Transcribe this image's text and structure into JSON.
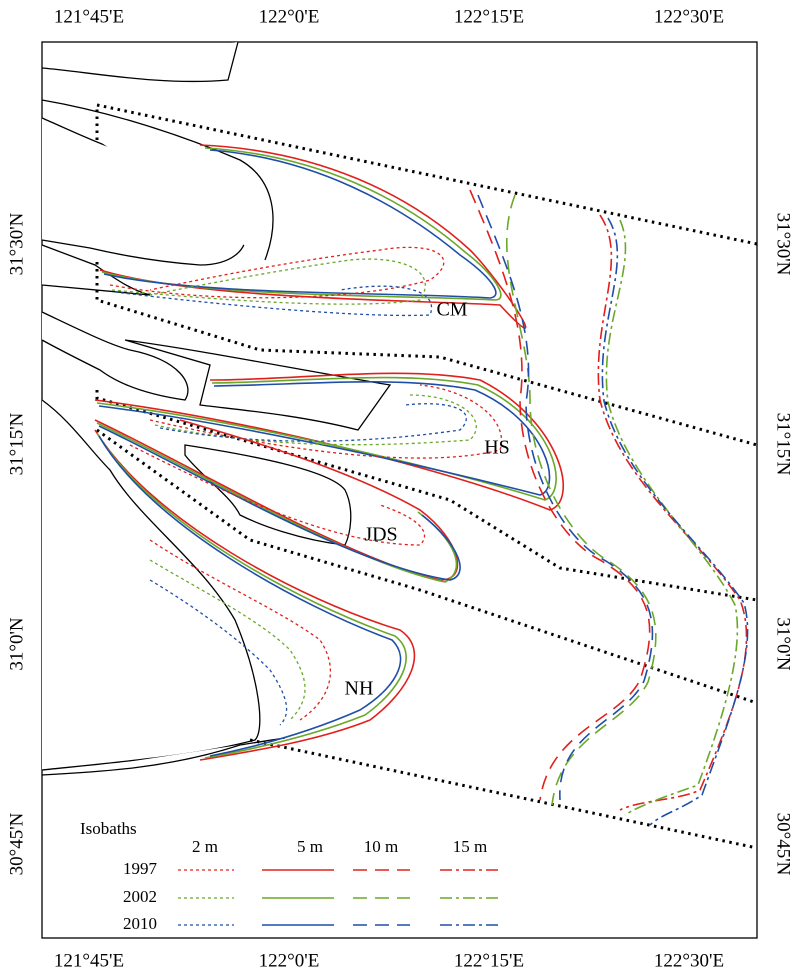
{
  "map": {
    "lon_ticks": [
      "121°45'E",
      "122°0'E",
      "122°15'E",
      "122°30'E"
    ],
    "lat_ticks": [
      "31°30'N",
      "31°15'N",
      "31°0'N",
      "30°45'N"
    ],
    "regions": [
      "CM",
      "HS",
      "JDS",
      "NH"
    ],
    "legend": {
      "title": "Isobaths",
      "depths": [
        "2 m",
        "5 m",
        "10 m",
        "15 m"
      ],
      "years": [
        "1997",
        "2002",
        "2010"
      ]
    }
  }
}
